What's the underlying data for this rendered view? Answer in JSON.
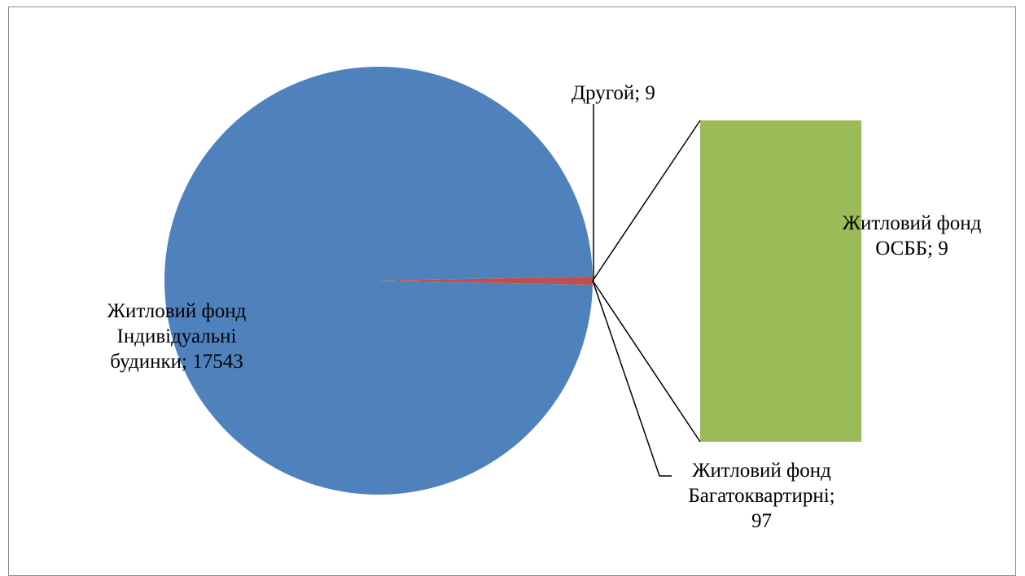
{
  "chart_data": {
    "type": "pie",
    "subtype": "bar-of-pie",
    "slices": [
      {
        "label": "Житловий фонд Індивідуальні будинки; 17543",
        "category": "Житловий фонд Індивідуальні будинки",
        "value": 17543,
        "color": "#4f81bd"
      },
      {
        "label": "Житловий фонд Багатоквартирні; 97",
        "category": "Житловий фонд Багатоквартирні",
        "value": 97,
        "color": "#c0504d"
      },
      {
        "label": "Другой; 9",
        "category": "Другой",
        "value": 9,
        "color": "#c0504d"
      }
    ],
    "bar_of_pie": {
      "label": "Житловий фонд ОСББ; 9",
      "category": "Житловий фонд ОСББ",
      "value": 9,
      "color": "#9bbb59"
    },
    "legend": "none"
  },
  "labels": {
    "individual": "Житловий фонд\nІндивідуальні\nбудинки; 17543",
    "multi": "Житловий фонд\nБагатоквартирні;\n97",
    "other": "Другой; 9",
    "osbb": "Житловий фонд\nОСББ; 9"
  }
}
